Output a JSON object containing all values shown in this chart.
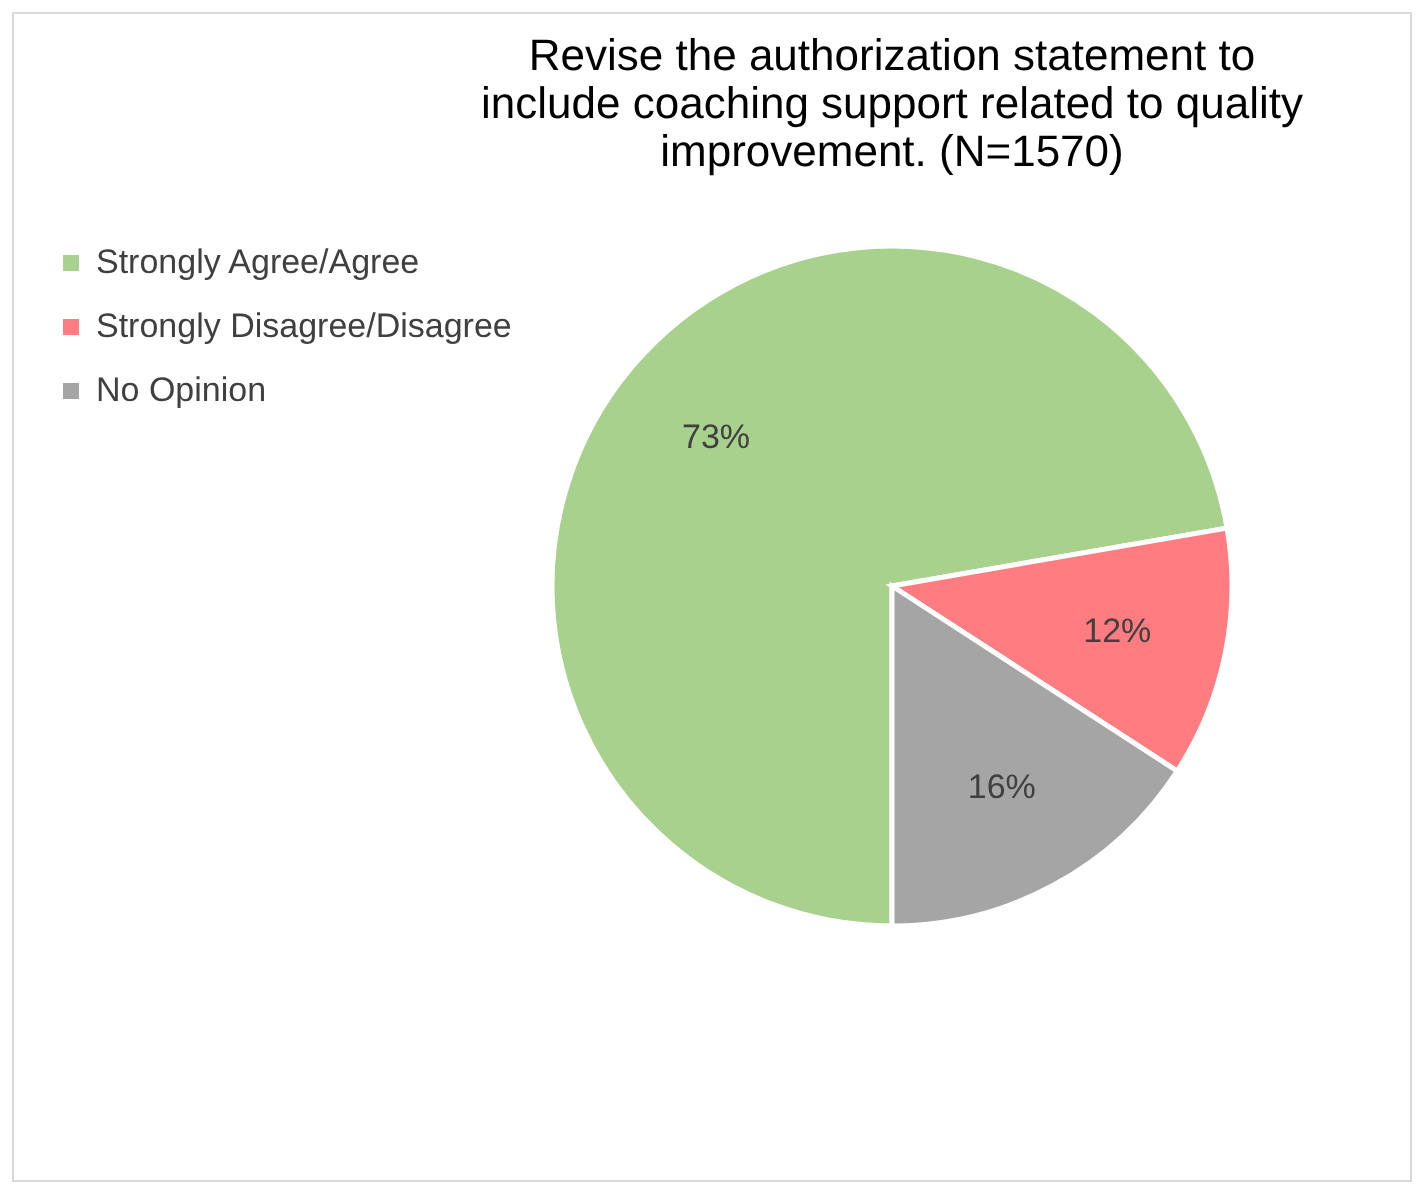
{
  "chart_data": {
    "type": "pie",
    "title": "Revise the authorization statement to include coaching support related to quality improvement. (N=1570)",
    "categories": [
      "Strongly Agree/Agree",
      "Strongly Disagree/Disagree",
      "No Opinion"
    ],
    "values": [
      73,
      12,
      16
    ],
    "colors": [
      "#a9d18e",
      "#ff7c80",
      "#a5a5a5"
    ],
    "value_labels": [
      "73%",
      "12%",
      "16%"
    ],
    "legend": "left"
  }
}
